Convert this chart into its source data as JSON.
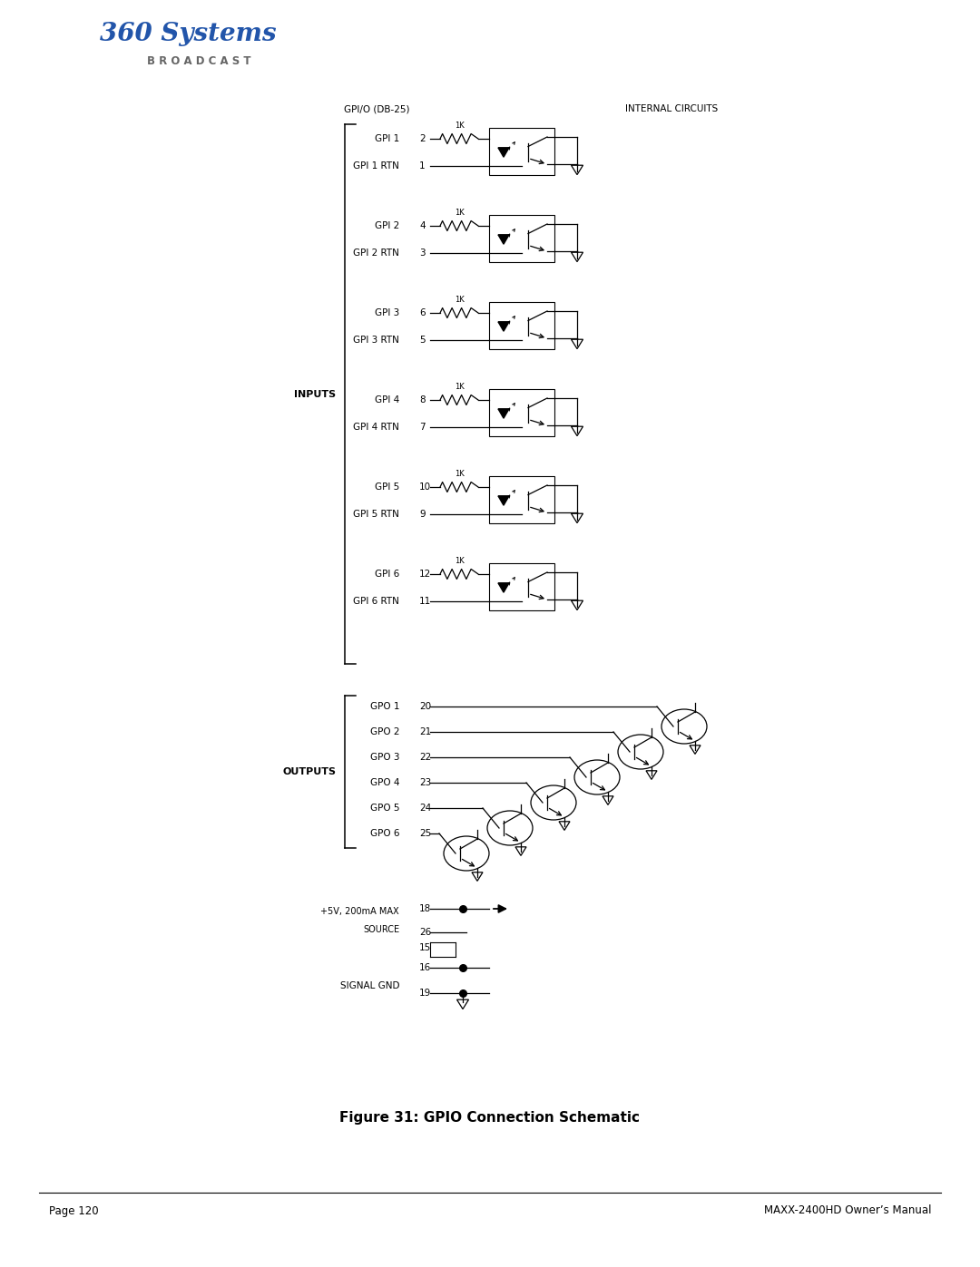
{
  "title": "Figure 31: GPIO Connection Schematic",
  "page_left": "Page 120",
  "page_right": "MAXX-2400HD Owner’s Manual",
  "header_left": "GPI/O (DB-25)",
  "header_right": "INTERNAL CIRCUITS",
  "inputs_label": "INPUTS",
  "outputs_label": "OUTPUTS",
  "gpi_rows": [
    {
      "label": "GPI 1",
      "pin": "2",
      "rtn_label": "GPI 1 RTN",
      "rtn_pin": "1"
    },
    {
      "label": "GPI 2",
      "pin": "4",
      "rtn_label": "GPI 2 RTN",
      "rtn_pin": "3"
    },
    {
      "label": "GPI 3",
      "pin": "6",
      "rtn_label": "GPI 3 RTN",
      "rtn_pin": "5"
    },
    {
      "label": "GPI 4",
      "pin": "8",
      "rtn_label": "GPI 4 RTN",
      "rtn_pin": "7"
    },
    {
      "label": "GPI 5",
      "pin": "10",
      "rtn_label": "GPI 5 RTN",
      "rtn_pin": "9"
    },
    {
      "label": "GPI 6",
      "pin": "12",
      "rtn_label": "GPI 6 RTN",
      "rtn_pin": "11"
    }
  ],
  "gpo_rows": [
    {
      "label": "GPO 1",
      "pin": "20"
    },
    {
      "label": "GPO 2",
      "pin": "21"
    },
    {
      "label": "GPO 3",
      "pin": "22"
    },
    {
      "label": "GPO 4",
      "pin": "23"
    },
    {
      "label": "GPO 5",
      "pin": "24"
    },
    {
      "label": "GPO 6",
      "pin": "25"
    }
  ],
  "bg_color": "#ffffff",
  "line_color": "#000000",
  "text_color": "#000000",
  "logo_color": "#2255aa",
  "logo_gray": "#666666"
}
